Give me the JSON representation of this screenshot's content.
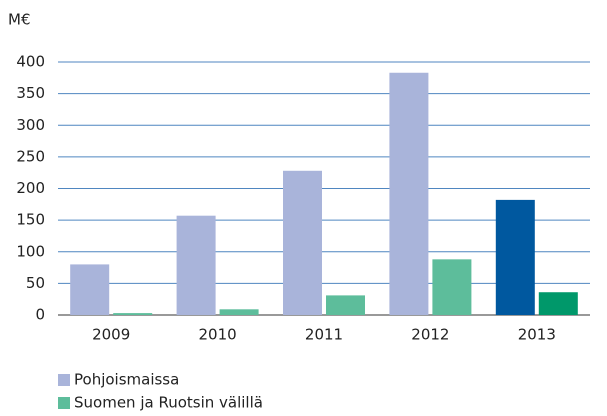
{
  "chart_data": {
    "type": "bar",
    "y_label": "M€",
    "categories": [
      "2009",
      "2010",
      "2011",
      "2012",
      "2013"
    ],
    "series": [
      {
        "name": "Pohjoismaissa",
        "color": "#a9b4da",
        "colors": [
          "#a9b4da",
          "#a9b4da",
          "#a9b4da",
          "#a9b4da",
          "#00589f"
        ],
        "values": [
          80,
          157,
          228,
          383,
          182
        ]
      },
      {
        "name": "Suomen ja Ruotsin välillä",
        "color": "#5dbd9b",
        "colors": [
          "#5dbd9b",
          "#5dbd9b",
          "#5dbd9b",
          "#5dbd9b",
          "#00986a"
        ],
        "values": [
          3,
          9,
          31,
          88,
          36
        ]
      }
    ],
    "ylim": [
      0,
      400
    ],
    "yticks": [
      0,
      50,
      100,
      150,
      200,
      250,
      300,
      350,
      400
    ],
    "grid": true,
    "legend": "bottom"
  }
}
